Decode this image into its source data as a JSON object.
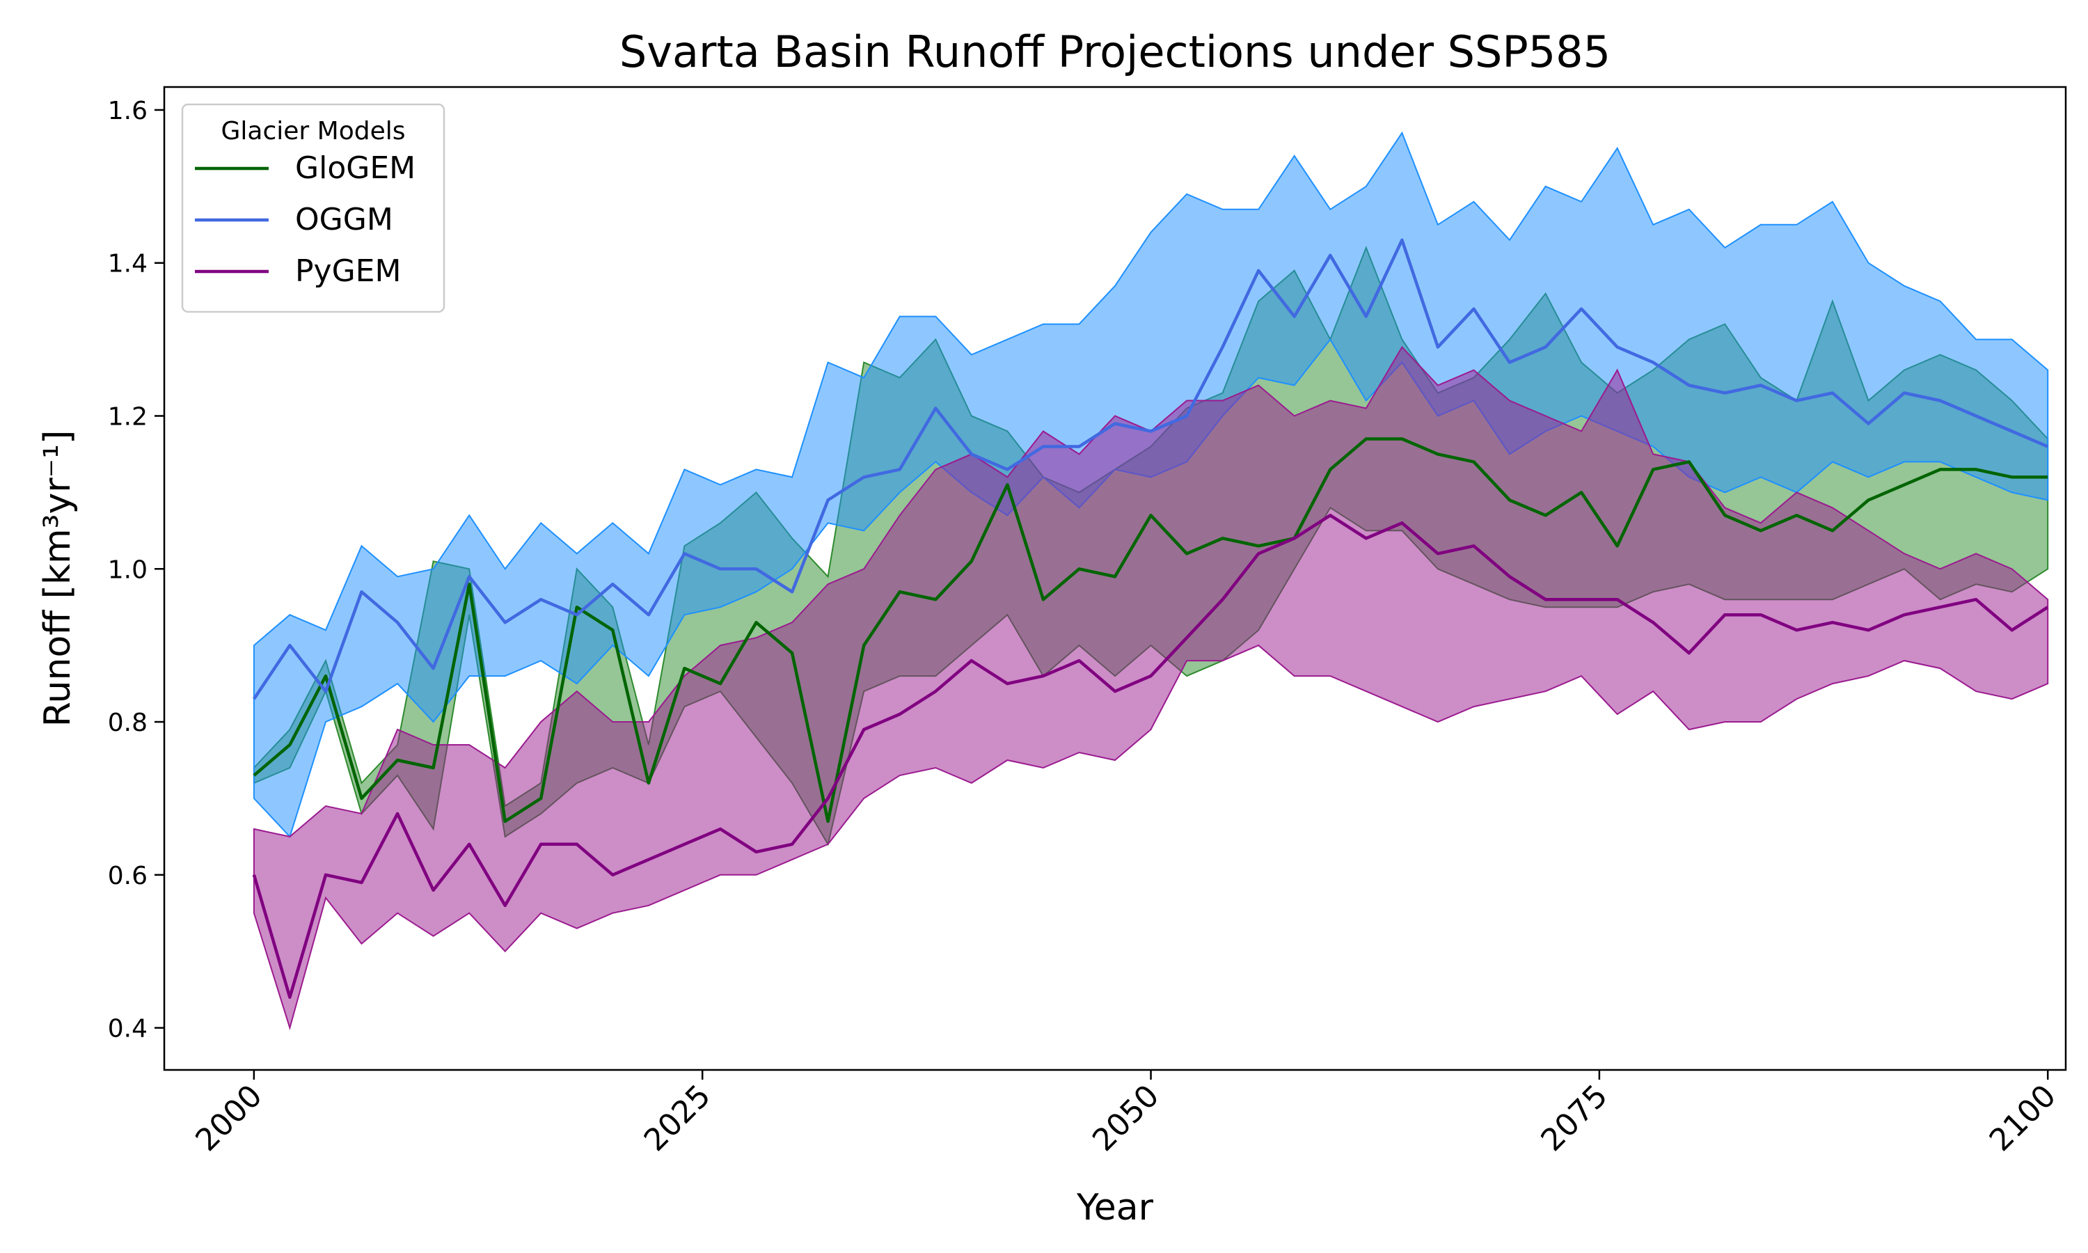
{
  "chart_data": {
    "type": "line",
    "title": "Svarta Basin Runoff Projections under SSP585",
    "xlabel": "Year",
    "ylabel": "Runoff [km³yr⁻¹]",
    "xlim": [
      1995,
      2101
    ],
    "ylim": [
      0.345,
      1.63
    ],
    "xticks": [
      2000,
      2025,
      2050,
      2075,
      2100
    ],
    "yticks": [
      0.4,
      0.6,
      0.8,
      1.0,
      1.2,
      1.4,
      1.6
    ],
    "grid": false,
    "legend": {
      "title": "Glacier Models",
      "placement": "top-left"
    },
    "series": [
      {
        "name": "GloGEM",
        "color": "#006400",
        "fill_color": "#2e8b2e",
        "x_start": 2000,
        "x_step": 2,
        "values": [
          0.73,
          0.77,
          0.86,
          0.7,
          0.75,
          0.74,
          0.98,
          0.67,
          0.7,
          0.95,
          0.92,
          0.72,
          0.87,
          0.85,
          0.93,
          0.89,
          0.67,
          0.9,
          0.97,
          0.96,
          1.01,
          1.11,
          0.96,
          1.0,
          0.99,
          1.07,
          1.02,
          1.04,
          1.03,
          1.04,
          1.13,
          1.17,
          1.17,
          1.15,
          1.14,
          1.09,
          1.07,
          1.1,
          1.03,
          1.13,
          1.14,
          1.07,
          1.05,
          1.07,
          1.05,
          1.09,
          1.11,
          1.13,
          1.13,
          1.12,
          1.12
        ],
        "lower": [
          0.72,
          0.74,
          0.84,
          0.68,
          0.73,
          0.66,
          0.94,
          0.65,
          0.68,
          0.72,
          0.74,
          0.72,
          0.82,
          0.84,
          0.78,
          0.72,
          0.64,
          0.84,
          0.86,
          0.86,
          0.9,
          0.94,
          0.86,
          0.9,
          0.86,
          0.9,
          0.86,
          0.88,
          0.92,
          1.0,
          1.08,
          1.05,
          1.05,
          1.0,
          0.98,
          0.96,
          0.95,
          0.95,
          0.95,
          0.97,
          0.98,
          0.96,
          0.96,
          0.96,
          0.96,
          0.98,
          1.0,
          0.96,
          0.98,
          0.97,
          1.0
        ],
        "upper": [
          0.74,
          0.79,
          0.88,
          0.72,
          0.77,
          1.01,
          1.0,
          0.69,
          0.72,
          1.0,
          0.95,
          0.77,
          1.03,
          1.06,
          1.1,
          1.04,
          0.99,
          1.27,
          1.25,
          1.3,
          1.2,
          1.18,
          1.12,
          1.1,
          1.13,
          1.16,
          1.21,
          1.23,
          1.35,
          1.39,
          1.3,
          1.42,
          1.3,
          1.23,
          1.25,
          1.3,
          1.36,
          1.27,
          1.23,
          1.26,
          1.3,
          1.32,
          1.25,
          1.22,
          1.35,
          1.22,
          1.26,
          1.28,
          1.26,
          1.22,
          1.17
        ]
      },
      {
        "name": "OGGM",
        "color": "#4169e1",
        "fill_color": "#1e90ff",
        "x_start": 2000,
        "x_step": 2,
        "values": [
          0.83,
          0.9,
          0.84,
          0.97,
          0.93,
          0.87,
          0.99,
          0.93,
          0.96,
          0.94,
          0.98,
          0.94,
          1.02,
          1.0,
          1.0,
          0.97,
          1.09,
          1.12,
          1.13,
          1.21,
          1.15,
          1.13,
          1.16,
          1.16,
          1.19,
          1.18,
          1.2,
          1.29,
          1.39,
          1.33,
          1.41,
          1.33,
          1.43,
          1.29,
          1.34,
          1.27,
          1.29,
          1.34,
          1.29,
          1.27,
          1.24,
          1.23,
          1.24,
          1.22,
          1.23,
          1.19,
          1.23,
          1.22,
          1.2,
          1.18,
          1.16
        ],
        "lower": [
          0.7,
          0.65,
          0.8,
          0.82,
          0.85,
          0.8,
          0.86,
          0.86,
          0.88,
          0.85,
          0.9,
          0.86,
          0.94,
          0.95,
          0.97,
          1.0,
          1.06,
          1.05,
          1.1,
          1.14,
          1.1,
          1.07,
          1.12,
          1.08,
          1.13,
          1.12,
          1.14,
          1.2,
          1.25,
          1.24,
          1.3,
          1.22,
          1.27,
          1.2,
          1.22,
          1.15,
          1.18,
          1.2,
          1.18,
          1.16,
          1.12,
          1.1,
          1.12,
          1.1,
          1.14,
          1.12,
          1.14,
          1.14,
          1.12,
          1.1,
          1.09
        ],
        "upper": [
          0.9,
          0.94,
          0.92,
          1.03,
          0.99,
          1.0,
          1.07,
          1.0,
          1.06,
          1.02,
          1.06,
          1.02,
          1.13,
          1.11,
          1.13,
          1.12,
          1.27,
          1.25,
          1.33,
          1.33,
          1.28,
          1.3,
          1.32,
          1.32,
          1.37,
          1.44,
          1.49,
          1.47,
          1.47,
          1.54,
          1.47,
          1.5,
          1.57,
          1.45,
          1.48,
          1.43,
          1.5,
          1.48,
          1.55,
          1.45,
          1.47,
          1.42,
          1.45,
          1.45,
          1.48,
          1.4,
          1.37,
          1.35,
          1.3,
          1.3,
          1.26
        ]
      },
      {
        "name": "PyGEM",
        "color": "#800080",
        "fill_color": "#9b1b8f",
        "x_start": 2000,
        "x_step": 2,
        "values": [
          0.6,
          0.44,
          0.6,
          0.59,
          0.68,
          0.58,
          0.64,
          0.56,
          0.64,
          0.64,
          0.6,
          0.62,
          0.64,
          0.66,
          0.63,
          0.64,
          0.7,
          0.79,
          0.81,
          0.84,
          0.88,
          0.85,
          0.86,
          0.88,
          0.84,
          0.86,
          0.91,
          0.96,
          1.02,
          1.04,
          1.07,
          1.04,
          1.06,
          1.02,
          1.03,
          0.99,
          0.96,
          0.96,
          0.96,
          0.93,
          0.89,
          0.94,
          0.94,
          0.92,
          0.93,
          0.92,
          0.94,
          0.95,
          0.96,
          0.92,
          0.95
        ],
        "lower": [
          0.55,
          0.4,
          0.57,
          0.51,
          0.55,
          0.52,
          0.55,
          0.5,
          0.55,
          0.53,
          0.55,
          0.56,
          0.58,
          0.6,
          0.6,
          0.62,
          0.64,
          0.7,
          0.73,
          0.74,
          0.72,
          0.75,
          0.74,
          0.76,
          0.75,
          0.79,
          0.88,
          0.88,
          0.9,
          0.86,
          0.86,
          0.84,
          0.82,
          0.8,
          0.82,
          0.83,
          0.84,
          0.86,
          0.81,
          0.84,
          0.79,
          0.8,
          0.8,
          0.83,
          0.85,
          0.86,
          0.88,
          0.87,
          0.84,
          0.83,
          0.85
        ],
        "upper": [
          0.66,
          0.65,
          0.69,
          0.68,
          0.79,
          0.77,
          0.77,
          0.74,
          0.8,
          0.84,
          0.8,
          0.8,
          0.86,
          0.9,
          0.91,
          0.93,
          0.98,
          1.0,
          1.07,
          1.13,
          1.15,
          1.12,
          1.18,
          1.15,
          1.2,
          1.18,
          1.22,
          1.22,
          1.24,
          1.2,
          1.22,
          1.21,
          1.29,
          1.24,
          1.26,
          1.22,
          1.2,
          1.18,
          1.26,
          1.15,
          1.14,
          1.08,
          1.06,
          1.1,
          1.08,
          1.05,
          1.02,
          1.0,
          1.02,
          1.0,
          0.96
        ]
      }
    ]
  }
}
